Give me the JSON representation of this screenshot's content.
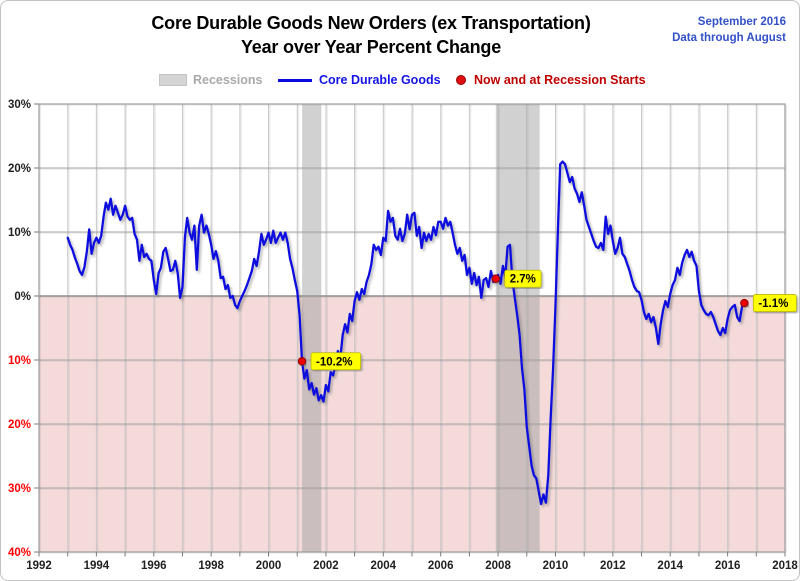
{
  "header": {
    "title_line1": "Core Durable Goods New Orders (ex Transportation)",
    "title_line2": "Year over Year Percent Change",
    "date_line1": "September 2016",
    "date_line2": "Data through August"
  },
  "legend": {
    "recessions_label": "Recessions",
    "series_label": "Core Durable Goods",
    "markers_label": "Now and at Recession Starts"
  },
  "colors": {
    "line_blue": "#0a0adf",
    "header_blue": "#3351c8",
    "legend_gray": "#a9a9a9",
    "legend_red": "#be0000",
    "negative_fill_pink": "#f4dbda",
    "recession_band": "rgba(158,158,158,0.48)",
    "v_gridline": "#c9c9c9",
    "h_gridline": "#a6a6a6",
    "plot_border": "#9b9b9b",
    "zero_line": "#8e8e8e",
    "tick_dark": "#212121",
    "tick_red": "#fe0000",
    "marker_red": "#ee0000",
    "marker_edge": "#900000",
    "label_yellow": "#ffff00",
    "label_edge": "#b8b800"
  },
  "chart_data": {
    "type": "line",
    "title": "Core Durable Goods New Orders (ex Transportation) — Year over Year Percent Change",
    "series_name": "Core Durable Goods",
    "x_unit": "year (monthly points)",
    "y_unit": "percent",
    "xlim": [
      1992,
      2018
    ],
    "ylim": [
      -40,
      30
    ],
    "grid": "yearly vertical, 10% horizontal",
    "x_start": 1993.0,
    "x_step": 0.0833333,
    "x_ticks": [
      {
        "value": 1992,
        "label": "1992"
      },
      {
        "value": 1994,
        "label": "1994"
      },
      {
        "value": 1996,
        "label": "1996"
      },
      {
        "value": 1998,
        "label": "1998"
      },
      {
        "value": 2000,
        "label": "2000"
      },
      {
        "value": 2002,
        "label": "2002"
      },
      {
        "value": 2004,
        "label": "2004"
      },
      {
        "value": 2006,
        "label": "2006"
      },
      {
        "value": 2008,
        "label": "2008"
      },
      {
        "value": 2010,
        "label": "2010"
      },
      {
        "value": 2012,
        "label": "2012"
      },
      {
        "value": 2014,
        "label": "2014"
      },
      {
        "value": 2016,
        "label": "2016"
      },
      {
        "value": 2018,
        "label": "2018"
      }
    ],
    "y_ticks": [
      {
        "value": 30,
        "label": "30%"
      },
      {
        "value": 20,
        "label": "20%"
      },
      {
        "value": 10,
        "label": "10%"
      },
      {
        "value": 0,
        "label": "0%"
      },
      {
        "value": -10,
        "label": "10%"
      },
      {
        "value": -20,
        "label": "20%"
      },
      {
        "value": -30,
        "label": "30%"
      },
      {
        "value": -40,
        "label": "40%"
      }
    ],
    "values": [
      9.1,
      8.0,
      7.2,
      6.0,
      5.0,
      3.9,
      3.3,
      4.5,
      6.9,
      10.4,
      6.6,
      8.3,
      9.1,
      8.3,
      9.4,
      12.4,
      14.6,
      13.5,
      15.2,
      12.7,
      14.1,
      13.0,
      11.9,
      12.7,
      14.1,
      12.4,
      11.9,
      12.2,
      9.7,
      8.8,
      5.5,
      8.0,
      6.1,
      6.6,
      5.8,
      5.5,
      2.5,
      0.3,
      3.6,
      4.4,
      6.9,
      7.5,
      5.8,
      3.9,
      4.1,
      5.5,
      3.6,
      -0.3,
      1.4,
      9.1,
      12.2,
      9.9,
      8.8,
      11.0,
      4.1,
      11.0,
      12.7,
      9.9,
      11.0,
      9.7,
      8.0,
      5.8,
      7.0,
      5.5,
      2.8,
      3.0,
      1.1,
      1.7,
      -0.3,
      0.0,
      -1.4,
      -1.9,
      -0.8,
      0.0,
      0.8,
      1.7,
      2.8,
      3.9,
      5.8,
      4.7,
      6.9,
      9.7,
      8.0,
      8.8,
      9.9,
      8.3,
      10.2,
      8.3,
      9.1,
      9.9,
      8.8,
      9.9,
      8.3,
      5.8,
      4.4,
      2.5,
      0.8,
      -3.0,
      -10.2,
      -12.9,
      -11.6,
      -14.6,
      -13.6,
      -15.4,
      -14.4,
      -16.3,
      -15.5,
      -16.5,
      -13.9,
      -14.9,
      -11.9,
      -12.4,
      -10.8,
      -8.6,
      -9.7,
      -6.1,
      -4.4,
      -5.7,
      -2.8,
      -3.9,
      -0.8,
      0.6,
      -0.6,
      1.1,
      0.3,
      2.2,
      3.3,
      5.0,
      8.0,
      7.2,
      7.7,
      6.4,
      9.1,
      8.6,
      13.3,
      11.6,
      12.2,
      9.4,
      8.8,
      10.5,
      8.6,
      9.7,
      12.7,
      10.4,
      12.7,
      13.0,
      9.4,
      10.8,
      7.5,
      9.9,
      8.6,
      9.7,
      8.8,
      10.8,
      9.5,
      11.6,
      11.6,
      10.5,
      12.2,
      11.0,
      11.6,
      9.9,
      8.0,
      6.6,
      7.5,
      5.5,
      6.4,
      3.3,
      4.4,
      1.9,
      3.6,
      1.7,
      3.0,
      -0.3,
      2.5,
      2.8,
      1.4,
      3.9,
      2.2,
      2.7,
      3.3,
      1.9,
      4.7,
      3.0,
      7.7,
      8.0,
      2.5,
      -0.3,
      -3.0,
      -6.1,
      -11.3,
      -14.6,
      -20.5,
      -23.5,
      -26.5,
      -28.0,
      -28.5,
      -30.5,
      -32.5,
      -31.0,
      -32.3,
      -28.0,
      -19.0,
      -11.3,
      -1.4,
      10.2,
      20.6,
      21.0,
      20.6,
      19.2,
      17.8,
      18.6,
      16.8,
      16.0,
      14.7,
      16.2,
      14.1,
      11.9,
      10.8,
      9.7,
      8.6,
      7.7,
      7.5,
      8.3,
      7.2,
      12.4,
      9.7,
      11.0,
      8.6,
      6.6,
      7.5,
      9.1,
      6.6,
      6.1,
      5.0,
      3.9,
      2.5,
      1.4,
      0.8,
      0.6,
      -0.6,
      -2.5,
      -3.6,
      -2.8,
      -4.1,
      -3.3,
      -5.0,
      -7.5,
      -4.4,
      -2.2,
      -0.8,
      -1.7,
      0.3,
      1.7,
      2.5,
      4.4,
      3.3,
      5.2,
      6.4,
      7.2,
      6.1,
      6.9,
      5.5,
      4.7,
      0.8,
      -1.4,
      -2.2,
      -2.8,
      -3.0,
      -2.5,
      -3.3,
      -4.4,
      -5.5,
      -6.1,
      -5.0,
      -5.8,
      -3.6,
      -2.2,
      -1.7,
      -1.4,
      -3.3,
      -3.9,
      -1.7,
      -1.1
    ],
    "recessions": [
      {
        "start": 2001.17,
        "end": 2001.84
      },
      {
        "start": 2007.92,
        "end": 2009.45
      }
    ],
    "annotations": [
      {
        "x": 2001.167,
        "y": -10.2,
        "label": "-10.2%"
      },
      {
        "x": 2007.917,
        "y": 2.7,
        "label": "2.7%"
      },
      {
        "x": 2016.583,
        "y": -1.1,
        "label": "-1.1%"
      }
    ],
    "negative_region": {
      "from": 0,
      "to": -40
    },
    "legend_position": "top"
  }
}
